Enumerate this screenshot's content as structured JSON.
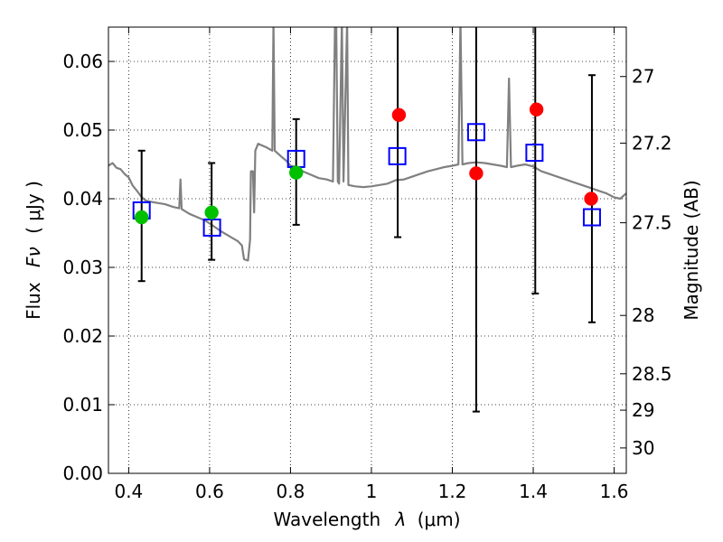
{
  "chart_data": {
    "type": "scatter",
    "xlabel_prefix": "Wavelength",
    "xlabel_symbol": "λ",
    "xlabel_unit": "(μm)",
    "ylabel_prefix": "Flux",
    "ylabel_symbol": "Fν",
    "ylabel_unit": "( μJy )",
    "y2label": "Magnitude (AB)",
    "xlim": [
      0.35,
      1.63
    ],
    "ylim": [
      0.0,
      0.065
    ],
    "grid": true,
    "x_ticks": [
      0.4,
      0.6,
      0.8,
      1.0,
      1.2,
      1.4,
      1.6
    ],
    "x_tick_labels": [
      "0.4",
      "0.6",
      "0.8",
      "1",
      "1.2",
      "1.4",
      "1.6"
    ],
    "y_ticks": [
      0.0,
      0.01,
      0.02,
      0.03,
      0.04,
      0.05,
      0.06
    ],
    "y_tick_labels": [
      "0.00",
      "0.01",
      "0.02",
      "0.03",
      "0.04",
      "0.05",
      "0.06"
    ],
    "y2_ticks": [
      {
        "label": "27",
        "flux": 0.0578
      },
      {
        "label": "27.2",
        "flux": 0.0481
      },
      {
        "label": "27.5",
        "flux": 0.0365
      },
      {
        "label": "28",
        "flux": 0.023
      },
      {
        "label": "28.5",
        "flux": 0.0145
      },
      {
        "label": "29",
        "flux": 0.0092
      },
      {
        "label": "30",
        "flux": 0.0037
      }
    ],
    "series": [
      {
        "name": "model SED",
        "style": "line",
        "color": "#808080",
        "points": [
          [
            0.35,
            0.0448
          ],
          [
            0.36,
            0.0452
          ],
          [
            0.37,
            0.0445
          ],
          [
            0.38,
            0.0443
          ],
          [
            0.39,
            0.0436
          ],
          [
            0.4,
            0.0431
          ],
          [
            0.41,
            0.0419
          ],
          [
            0.42,
            0.0412
          ],
          [
            0.43,
            0.0404
          ],
          [
            0.44,
            0.0398
          ],
          [
            0.45,
            0.0396
          ],
          [
            0.47,
            0.0394
          ],
          [
            0.49,
            0.0392
          ],
          [
            0.51,
            0.0388
          ],
          [
            0.525,
            0.0386
          ],
          [
            0.528,
            0.0428
          ],
          [
            0.531,
            0.0385
          ],
          [
            0.55,
            0.0378
          ],
          [
            0.57,
            0.0373
          ],
          [
            0.59,
            0.0368
          ],
          [
            0.61,
            0.036
          ],
          [
            0.63,
            0.0352
          ],
          [
            0.65,
            0.0345
          ],
          [
            0.67,
            0.0338
          ],
          [
            0.68,
            0.0332
          ],
          [
            0.685,
            0.0312
          ],
          [
            0.695,
            0.031
          ],
          [
            0.7,
            0.034
          ],
          [
            0.702,
            0.044
          ],
          [
            0.707,
            0.044
          ],
          [
            0.71,
            0.038
          ],
          [
            0.713,
            0.047
          ],
          [
            0.72,
            0.048
          ],
          [
            0.74,
            0.0475
          ],
          [
            0.755,
            0.047
          ],
          [
            0.758,
            0.066
          ],
          [
            0.761,
            0.047
          ],
          [
            0.78,
            0.046
          ],
          [
            0.79,
            0.0455
          ],
          [
            0.8,
            0.0448
          ],
          [
            0.81,
            0.0447
          ],
          [
            0.83,
            0.044
          ],
          [
            0.85,
            0.0435
          ],
          [
            0.87,
            0.043
          ],
          [
            0.89,
            0.0428
          ],
          [
            0.905,
            0.0425
          ],
          [
            0.91,
            0.066
          ],
          [
            0.913,
            0.066
          ],
          [
            0.917,
            0.0425
          ],
          [
            0.92,
            0.0422
          ],
          [
            0.927,
            0.066
          ],
          [
            0.931,
            0.0425
          ],
          [
            0.94,
            0.066
          ],
          [
            0.943,
            0.042
          ],
          [
            0.96,
            0.0418
          ],
          [
            0.98,
            0.0417
          ],
          [
            1.0,
            0.0418
          ],
          [
            1.02,
            0.042
          ],
          [
            1.04,
            0.0422
          ],
          [
            1.06,
            0.0427
          ],
          [
            1.08,
            0.0428
          ],
          [
            1.1,
            0.0432
          ],
          [
            1.12,
            0.0436
          ],
          [
            1.14,
            0.044
          ],
          [
            1.16,
            0.0443
          ],
          [
            1.18,
            0.0446
          ],
          [
            1.2,
            0.0448
          ],
          [
            1.215,
            0.045
          ],
          [
            1.22,
            0.066
          ],
          [
            1.225,
            0.045
          ],
          [
            1.24,
            0.0452
          ],
          [
            1.26,
            0.0453
          ],
          [
            1.28,
            0.0452
          ],
          [
            1.3,
            0.045
          ],
          [
            1.32,
            0.0448
          ],
          [
            1.335,
            0.0446
          ],
          [
            1.34,
            0.0575
          ],
          [
            1.345,
            0.0446
          ],
          [
            1.36,
            0.0448
          ],
          [
            1.38,
            0.045
          ],
          [
            1.4,
            0.0447
          ],
          [
            1.42,
            0.044
          ],
          [
            1.44,
            0.0436
          ],
          [
            1.46,
            0.0432
          ],
          [
            1.48,
            0.0428
          ],
          [
            1.5,
            0.0424
          ],
          [
            1.52,
            0.042
          ],
          [
            1.54,
            0.0416
          ],
          [
            1.56,
            0.0412
          ],
          [
            1.58,
            0.0408
          ],
          [
            1.6,
            0.0402
          ],
          [
            1.615,
            0.04
          ],
          [
            1.63,
            0.0408
          ]
        ]
      },
      {
        "name": "observed (green)",
        "style": "circle",
        "color": "#00c000",
        "points": [
          [
            0.432,
            0.0373
          ],
          [
            0.605,
            0.038
          ],
          [
            0.814,
            0.0438
          ]
        ]
      },
      {
        "name": "observed (red)",
        "style": "circle",
        "color": "#ff0000",
        "points": [
          [
            1.068,
            0.0522
          ],
          [
            1.259,
            0.0437
          ],
          [
            1.408,
            0.053
          ],
          [
            1.543,
            0.04
          ]
        ]
      },
      {
        "name": "model photometry",
        "style": "square",
        "color": "#0000ff",
        "points": [
          [
            0.432,
            0.0383
          ],
          [
            0.606,
            0.0358
          ],
          [
            0.814,
            0.0458
          ],
          [
            1.064,
            0.0462
          ],
          [
            1.259,
            0.0497
          ],
          [
            1.403,
            0.0467
          ],
          [
            1.545,
            0.0373
          ]
        ]
      },
      {
        "name": "error bars",
        "style": "errorbar",
        "color": "#000000",
        "points": [
          [
            0.432,
            0.028,
            0.047
          ],
          [
            0.605,
            0.0311,
            0.0452
          ],
          [
            0.814,
            0.0362,
            0.0516
          ],
          [
            1.065,
            0.0344,
            0.066
          ],
          [
            1.259,
            0.009,
            0.066
          ],
          [
            1.405,
            0.0262,
            0.066
          ],
          [
            1.545,
            0.022,
            0.058
          ]
        ]
      }
    ]
  }
}
